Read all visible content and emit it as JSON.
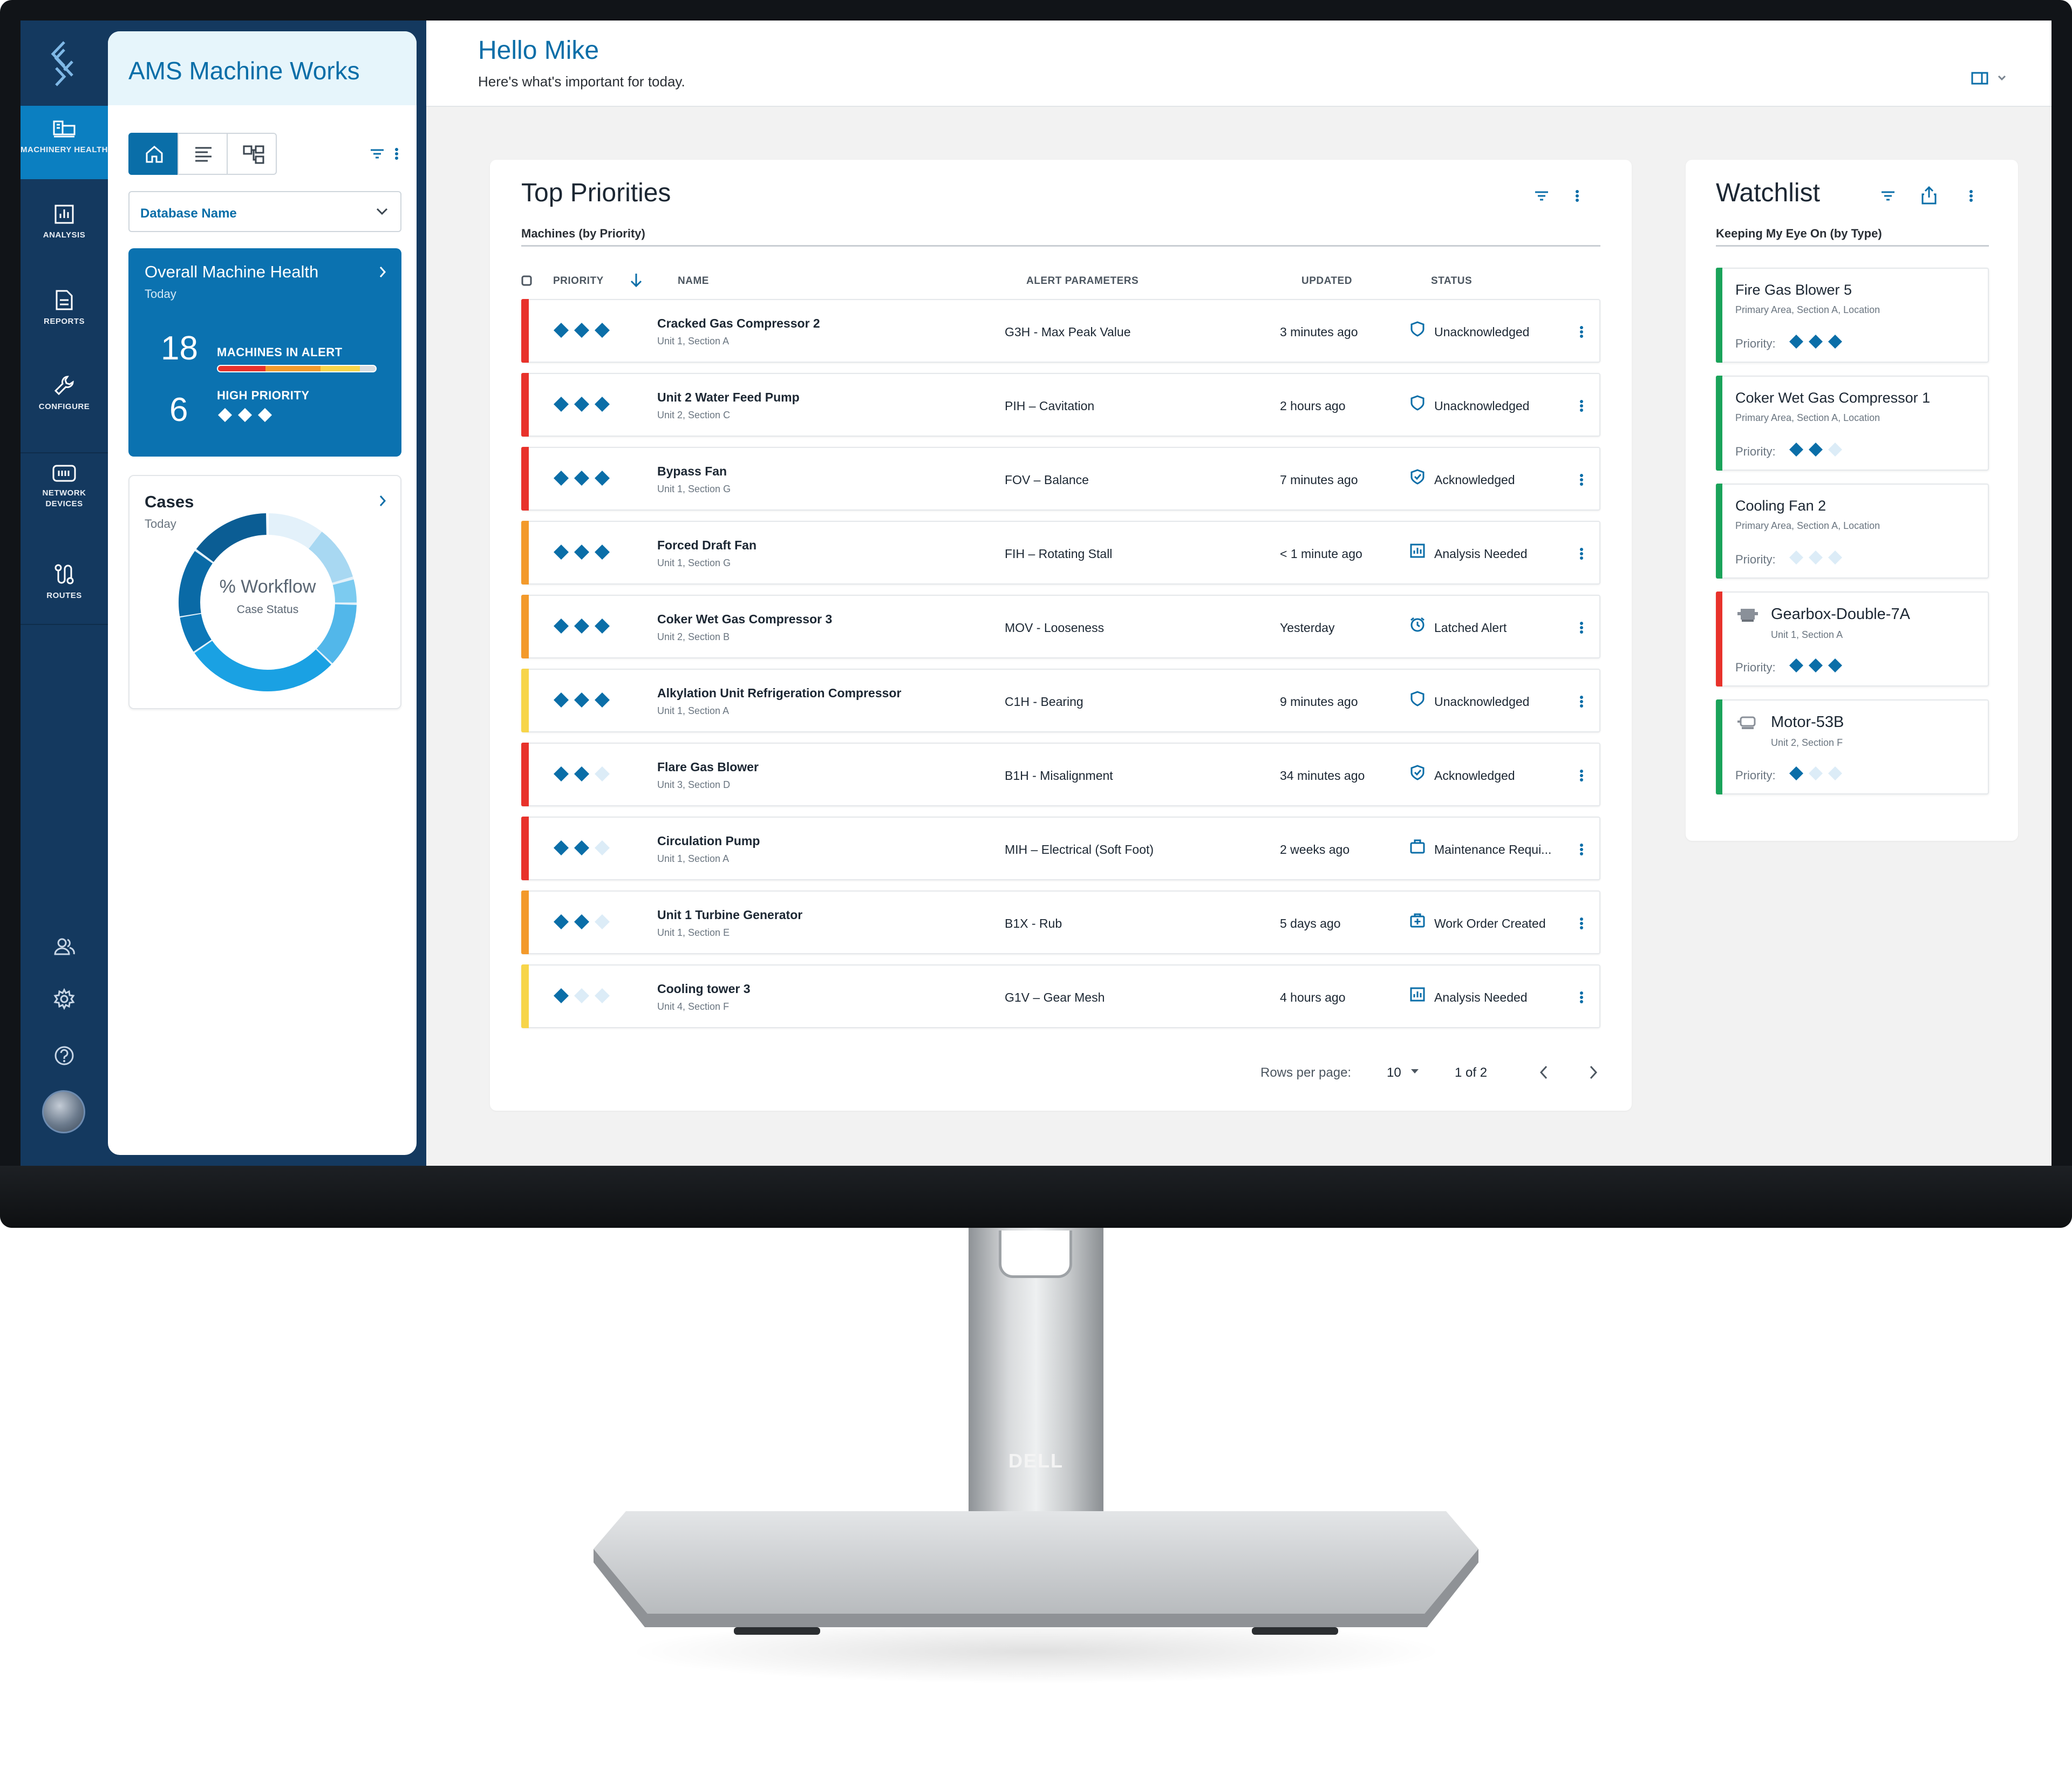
{
  "app": {
    "org_name": "AMS Machine Works",
    "brand_color": "#0a6ea8",
    "rail_color": "#14395f",
    "monitor_logo": "DELL"
  },
  "rail": {
    "items": [
      {
        "label": "MACHINERY HEALTH",
        "icon": "machinery-health-icon",
        "active": true
      },
      {
        "label": "ANALYSIS",
        "icon": "analysis-icon"
      },
      {
        "label": "REPORTS",
        "icon": "reports-icon"
      },
      {
        "label": "CONFIGURE",
        "icon": "wrench-icon"
      },
      {
        "label": "NETWORK DEVICES",
        "icon": "network-devices-icon"
      },
      {
        "label": "ROUTES",
        "icon": "routes-icon"
      }
    ],
    "bottom_icons": [
      "users-icon",
      "gear-icon",
      "help-icon",
      "avatar"
    ]
  },
  "side": {
    "view_toggle": [
      "home-icon",
      "list-icon",
      "hierarchy-icon"
    ],
    "database_select": "Database Name",
    "health": {
      "title": "Overall Machine Health",
      "subtitle": "Today",
      "alert_count": "18",
      "alert_label": "MACHINES IN ALERT",
      "high_priority_count": "6",
      "high_priority_label": "HIGH PRIORITY",
      "alert_bar_segments": [
        {
          "color": "#e8322b",
          "fraction": 0.3
        },
        {
          "color": "#f39a2b",
          "fraction": 0.35
        },
        {
          "color": "#f7d54a",
          "fraction": 0.25
        },
        {
          "color": "#d8dde2",
          "fraction": 0.1
        }
      ]
    },
    "cases": {
      "title": "Cases",
      "subtitle": "Today",
      "center_label": "% Workflow",
      "center_sub": "Case Status"
    }
  },
  "header": {
    "greeting": "Hello Mike",
    "subtitle": "Here's what's important for today."
  },
  "priorities": {
    "title": "Top Priorities",
    "subtitle": "Machines (by Priority)",
    "columns": [
      "PRIORITY",
      "NAME",
      "ALERT PARAMETERS",
      "UPDATED",
      "STATUS"
    ],
    "rows": [
      {
        "name": "Cracked Gas Compressor 2",
        "location": "Unit 1, Section A",
        "param": "G3H - Max Peak Value",
        "updated": "3 minutes ago",
        "status": "Unacknowledged",
        "status_icon": "shield-icon",
        "priority": 3,
        "severity": "#e8322b"
      },
      {
        "name": "Unit 2 Water Feed Pump",
        "location": "Unit 2, Section C",
        "param": "PIH – Cavitation",
        "updated": "2 hours ago",
        "status": "Unacknowledged",
        "status_icon": "shield-icon",
        "priority": 3,
        "severity": "#e8322b"
      },
      {
        "name": "Bypass Fan",
        "location": "Unit 1, Section G",
        "param": "FOV – Balance",
        "updated": "7 minutes ago",
        "status": "Acknowledged",
        "status_icon": "shield-check-icon",
        "priority": 3,
        "severity": "#e8322b"
      },
      {
        "name": "Forced Draft Fan",
        "location": "Unit 1, Section G",
        "param": "FIH – Rotating Stall",
        "updated": "< 1 minute ago",
        "status": "Analysis Needed",
        "status_icon": "analysis-needed-icon",
        "priority": 3,
        "severity": "#f39a2b"
      },
      {
        "name": "Coker Wet Gas Compressor 3",
        "location": "Unit 2, Section B",
        "param": "MOV - Looseness",
        "updated": "Yesterday",
        "status": "Latched Alert",
        "status_icon": "alarm-clock-icon",
        "priority": 3,
        "severity": "#f39a2b"
      },
      {
        "name": "Alkylation Unit Refrigeration Compressor",
        "location": "Unit 1, Section A",
        "param": "C1H - Bearing",
        "updated": "9 minutes ago",
        "status": "Unacknowledged",
        "status_icon": "shield-icon",
        "priority": 3,
        "severity": "#f7d54a"
      },
      {
        "name": "Flare Gas Blower",
        "location": "Unit 3, Section D",
        "param": "B1H - Misalignment",
        "updated": "34 minutes ago",
        "status": "Acknowledged",
        "status_icon": "shield-check-icon",
        "priority": 2,
        "severity": "#e8322b"
      },
      {
        "name": "Circulation Pump",
        "location": "Unit 1, Section A",
        "param": "MIH – Electrical (Soft Foot)",
        "updated": "2 weeks ago",
        "status": "Maintenance Requi...",
        "status_icon": "toolbox-icon",
        "priority": 2,
        "severity": "#e8322b"
      },
      {
        "name": "Unit 1 Turbine Generator",
        "location": "Unit 1, Section E",
        "param": "B1X - Rub",
        "updated": "5 days ago",
        "status": "Work Order Created",
        "status_icon": "work-order-icon",
        "priority": 2,
        "severity": "#f39a2b"
      },
      {
        "name": "Cooling tower 3",
        "location": "Unit 4, Section F",
        "param": "G1V – Gear Mesh",
        "updated": "4 hours ago",
        "status": "Analysis Needed",
        "status_icon": "analysis-needed-icon",
        "priority": 1,
        "severity": "#f7d54a"
      }
    ],
    "rows_per_page_label": "Rows per page:",
    "rows_per_page": "10",
    "page_info": "1 of 2"
  },
  "watchlist": {
    "title": "Watchlist",
    "subtitle": "Keeping My Eye On (by Type)",
    "priority_label": "Priority:",
    "items": [
      {
        "name": "Fire Gas Blower 5",
        "location": "Primary Area, Section A, Location",
        "priority": 3,
        "severity": "#1aa35a"
      },
      {
        "name": "Coker Wet Gas Compressor 1",
        "location": "Primary Area, Section A, Location",
        "priority": 2,
        "severity": "#1aa35a"
      },
      {
        "name": "Cooling Fan 2",
        "location": "Primary Area, Section A, Location",
        "priority": 0,
        "severity": "#1aa35a"
      },
      {
        "name": "Gearbox-Double-7A",
        "location": "Unit 1, Section A",
        "priority": 3,
        "severity": "#e8322b",
        "icon": "gearbox-icon"
      },
      {
        "name": "Motor-53B",
        "location": "Unit 2, Section F",
        "priority": 1,
        "severity": "#1aa35a",
        "icon": "motor-icon"
      }
    ]
  }
}
